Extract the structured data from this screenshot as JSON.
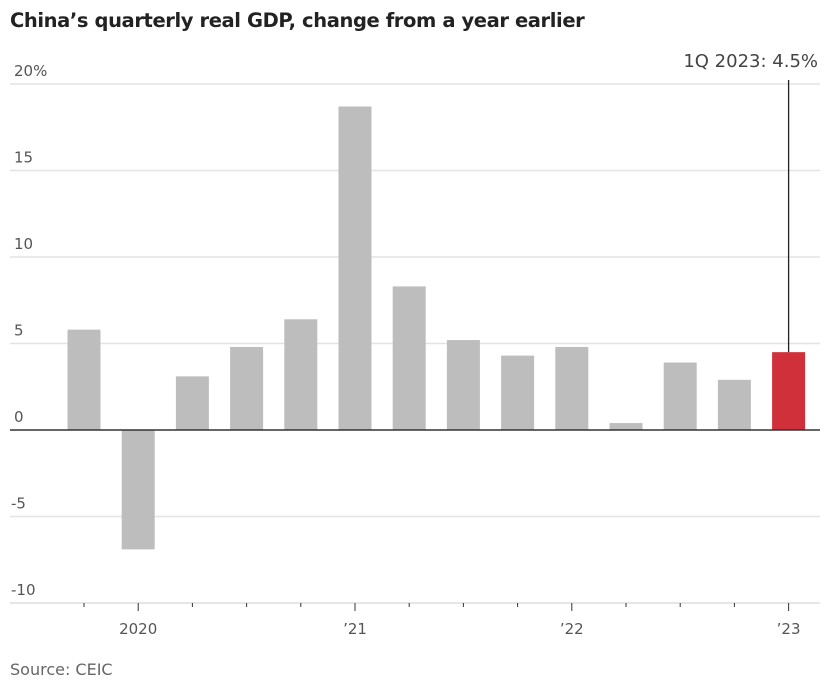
{
  "chart_data": {
    "type": "bar",
    "title": "China’s quarterly real GDP, change from a year earlier",
    "source": "Source: CEIC",
    "xlabel": "",
    "ylabel": "",
    "ylim": [
      -10,
      20
    ],
    "yticks": [
      20,
      15,
      10,
      5,
      0,
      -5,
      -10
    ],
    "ytick_labels": [
      "20%",
      "15",
      "10",
      "5",
      "0",
      "-5",
      "-10"
    ],
    "grid": true,
    "categories": [
      "4Q 2019",
      "1Q 2020",
      "2Q 2020",
      "3Q 2020",
      "4Q 2020",
      "1Q 2021",
      "2Q 2021",
      "3Q 2021",
      "4Q 2021",
      "1Q 2022",
      "2Q 2022",
      "3Q 2022",
      "4Q 2022",
      "1Q 2023"
    ],
    "values": [
      5.8,
      -6.9,
      3.1,
      4.8,
      6.4,
      18.7,
      8.3,
      5.2,
      4.3,
      4.8,
      0.4,
      3.9,
      2.9,
      4.5
    ],
    "highlight_index": 13,
    "colors": {
      "bar": "#bdbdbd",
      "highlight": "#d0303a",
      "grid": "#e3e3e3",
      "axis": "#333333"
    },
    "xtick_labels": [
      {
        "label": "2020",
        "quarter_index": 1
      },
      {
        "label": "’21",
        "quarter_index": 5
      },
      {
        "label": "’22",
        "quarter_index": 9
      },
      {
        "label": "’23",
        "quarter_index": 13
      }
    ],
    "annotation": {
      "text": "1Q 2023: 4.5%",
      "target_index": 13
    }
  }
}
